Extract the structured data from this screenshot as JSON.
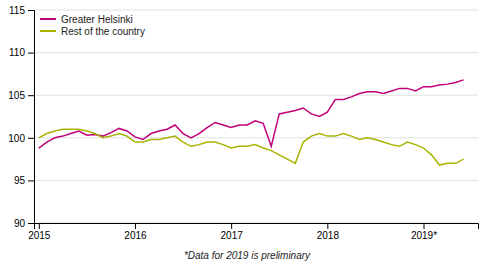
{
  "chart_data": {
    "type": "line",
    "x": [
      2015,
      2015.0833333333333,
      2015.1666666666667,
      2015.25,
      2015.3333333333333,
      2015.4166666666667,
      2015.5,
      2015.5833333333333,
      2015.6666666666667,
      2015.75,
      2015.8333333333333,
      2015.9166666666667,
      2016,
      2016.0833333333333,
      2016.1666666666667,
      2016.25,
      2016.3333333333333,
      2016.4166666666667,
      2016.5,
      2016.5833333333333,
      2016.6666666666667,
      2016.75,
      2016.8333333333333,
      2016.9166666666667,
      2017,
      2017.0833333333333,
      2017.1666666666667,
      2017.25,
      2017.3333333333333,
      2017.4166666666667,
      2017.5,
      2017.5833333333333,
      2017.6666666666667,
      2017.75,
      2017.8333333333333,
      2017.9166666666667,
      2018,
      2018.0833333333333,
      2018.1666666666667,
      2018.25,
      2018.3333333333333,
      2018.4166666666667,
      2018.5,
      2018.5833333333333,
      2018.6666666666667,
      2018.75,
      2018.8333333333333,
      2018.9166666666667,
      2019,
      2019.0833333333333,
      2019.1666666666667,
      2019.25,
      2019.3333333333333,
      2019.4166666666667
    ],
    "series": [
      {
        "name": "Greater Helsinki",
        "color": "#c0007a",
        "values": [
          98.8,
          99.5,
          100.0,
          100.2,
          100.5,
          100.8,
          100.3,
          100.4,
          100.2,
          100.6,
          101.1,
          100.8,
          100.1,
          99.8,
          100.5,
          100.8,
          101.0,
          101.5,
          100.5,
          100.0,
          100.5,
          101.2,
          101.8,
          101.5,
          101.2,
          101.5,
          101.5,
          102.0,
          101.7,
          99.0,
          102.8,
          103.0,
          103.2,
          103.5,
          102.8,
          102.5,
          103.0,
          104.5,
          104.5,
          104.8,
          105.2,
          105.4,
          105.4,
          105.2,
          105.5,
          105.8,
          105.8,
          105.5,
          106.0,
          106.0,
          106.2,
          106.3,
          106.5,
          106.8
        ]
      },
      {
        "name": "Rest of the country",
        "color": "#a8b400",
        "values": [
          100.0,
          100.5,
          100.8,
          101.0,
          101.0,
          101.0,
          100.8,
          100.5,
          100.0,
          100.2,
          100.5,
          100.2,
          99.5,
          99.5,
          99.8,
          99.8,
          100.0,
          100.2,
          99.5,
          99.0,
          99.2,
          99.5,
          99.5,
          99.2,
          98.8,
          99.0,
          99.0,
          99.2,
          98.8,
          98.5,
          98.0,
          97.5,
          97.0,
          99.5,
          100.2,
          100.5,
          100.2,
          100.2,
          100.5,
          100.2,
          99.8,
          100.0,
          99.8,
          99.5,
          99.2,
          99.0,
          99.5,
          99.2,
          98.8,
          98.0,
          96.8,
          97.0,
          97.0,
          97.5
        ]
      }
    ],
    "xlim": [
      2014.95,
      2019.5666666666666
    ],
    "xticks": [
      2015,
      2016,
      2017,
      2018,
      {
        "value": 2019,
        "label": "2019*"
      }
    ],
    "ylim": [
      90,
      115
    ],
    "yticks": [
      90,
      95,
      100,
      105,
      110,
      115
    ],
    "grid": "y",
    "legend": "upper left",
    "annotation": "*Data for 2019 is preliminary"
  }
}
